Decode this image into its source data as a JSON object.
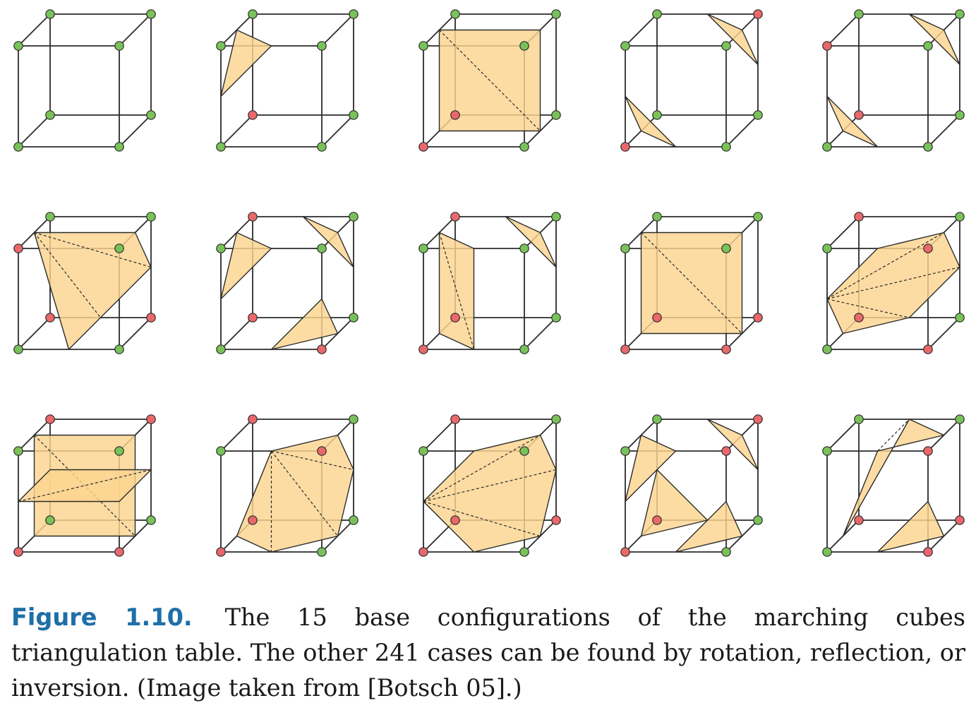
{
  "caption": {
    "label": "Figure 1.10.",
    "text": "The 15 base configurations of the marching cubes triangulation table. The other 241 cases can be found by rotation, reflection, or inversion. (Image taken from [Botsch 05].)"
  },
  "colors": {
    "inside_vertex": "#e9686b",
    "outside_vertex": "#79c25a",
    "surface": "#fbd48f",
    "edge": "#2b2b2b",
    "caption_label": "#1f6fa8"
  },
  "diagram": {
    "cases": [
      {
        "case": 0,
        "red": [],
        "polys": [],
        "diags": []
      },
      {
        "case": 1,
        "red": [
          4
        ],
        "polys": [
          [
            [
              0.5,
              0
            ],
            [
              0.62,
              0.5
            ],
            [
              0,
              0.62
            ]
          ]
        ],
        "diags": []
      },
      {
        "case": 2,
        "red": [
          4,
          0
        ],
        "polys": [
          [
            [
              0.5,
              0
            ],
            [
              0.5,
              1
            ],
            [
              0,
              0.62
            ],
            [
              0,
              0.38
            ]
          ]
        ],
        "diags": [
          [
            [
              0.5,
              0
            ],
            [
              0,
              0.62
            ]
          ]
        ]
      },
      {
        "case": 3,
        "red": [
          6,
          0
        ],
        "polys": [
          [
            [
              0,
              0.6
            ],
            [
              0.3,
              1
            ],
            [
              0,
              0.4
            ]
          ],
          [
            [
              1,
              0.6
            ],
            [
              0.3,
              0
            ],
            [
              0.85,
              0.5
            ]
          ]
        ],
        "diags": []
      },
      {
        "case": 4,
        "red": [
          3,
          4
        ],
        "polys": [
          [
            [
              0,
              0.6
            ],
            [
              0,
              0.4
            ],
            [
              0,
              0.5
            ]
          ],
          [
            [
              0.7,
              0
            ],
            [
              1,
              0.5
            ],
            [
              0.85,
              0.6
            ]
          ]
        ],
        "diags": []
      },
      {
        "case": 5,
        "red": [
          4,
          5,
          3
        ],
        "polys": [
          [
            [
              0.5,
              0
            ],
            [
              0,
              0.62
            ],
            [
              0,
              0.38
            ]
          ],
          [
            [
              0.5,
              0
            ],
            [
              0,
              0.62
            ],
            [
              0,
              0.38
            ]
          ],
          [
            [
              0.5,
              0
            ],
            [
              0,
              0.62
            ],
            [
              0,
              0.38
            ]
          ]
        ],
        "diags": []
      },
      {
        "case": 6,
        "red": [
          4,
          1,
          7
        ],
        "polys": [],
        "diags": []
      },
      {
        "case": 7,
        "red": [
          0,
          4,
          7
        ],
        "polys": [],
        "diags": []
      },
      {
        "case": 8,
        "red": [
          4,
          0,
          1,
          5
        ],
        "polys": [],
        "diags": []
      },
      {
        "case": 9,
        "red": [
          4,
          2,
          7,
          1
        ],
        "polys": [],
        "diags": []
      },
      {
        "case": 10,
        "red": [
          0,
          1,
          6,
          7
        ],
        "polys": [],
        "diags": []
      },
      {
        "case": 11,
        "red": [
          4,
          0,
          2,
          7
        ],
        "polys": [],
        "diags": []
      },
      {
        "case": 12,
        "red": [
          0,
          4,
          5,
          7
        ],
        "polys": [],
        "diags": []
      },
      {
        "case": 13,
        "red": [
          0,
          6,
          2,
          4
        ],
        "polys": [],
        "diags": []
      },
      {
        "case": 14,
        "red": [
          4,
          1,
          2,
          5
        ],
        "polys": [],
        "diags": []
      }
    ]
  }
}
